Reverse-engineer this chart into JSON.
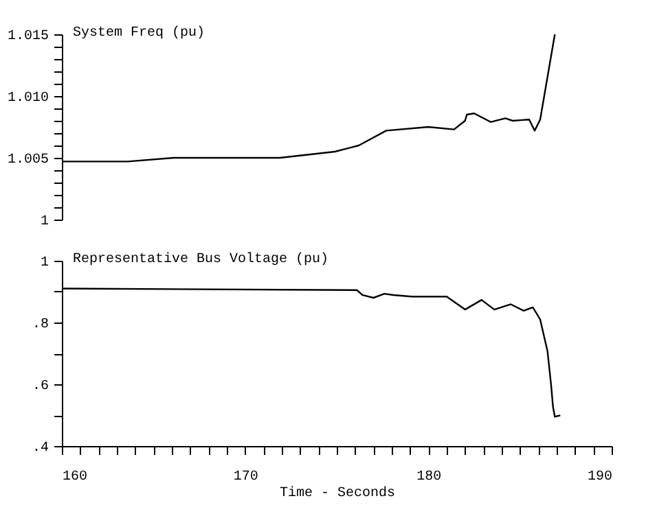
{
  "chart_data": [
    {
      "type": "line",
      "title": "System Freq (pu)",
      "tick_labels": "y",
      "grid": false,
      "xlim": [
        160,
        190
      ],
      "ylim": [
        1,
        1.015
      ],
      "yticks": [
        1,
        {
          "value": 1.001,
          "label": null
        },
        {
          "value": 1.002,
          "label": null
        },
        {
          "value": 1.003,
          "label": null
        },
        {
          "value": 1.004,
          "label": null
        },
        1.005,
        {
          "value": 1.006,
          "label": null
        },
        {
          "value": 1.007,
          "label": null
        },
        {
          "value": 1.008,
          "label": null
        },
        {
          "value": 1.009,
          "label": null
        },
        {
          "value": 1.01,
          "label": "1.010"
        },
        {
          "value": 1.011,
          "label": null
        },
        {
          "value": 1.012,
          "label": null
        },
        {
          "value": 1.013,
          "label": null
        },
        {
          "value": 1.014,
          "label": null
        },
        1.015
      ],
      "series": [
        {
          "color": "#000000",
          "x": [
            160,
            163.6,
            166.1,
            171.9,
            174.9,
            176.2,
            177.7,
            180.0,
            181.4,
            182.0,
            182.1,
            182.5,
            183.4,
            184.2,
            184.6,
            185.5,
            185.8,
            186.1,
            186.9
          ],
          "values": [
            1.0047,
            1.0047,
            1.005,
            1.005,
            1.0055,
            1.006,
            1.0072,
            1.0075,
            1.0073,
            1.008,
            1.0085,
            1.0086,
            1.0079,
            1.0082,
            1.008,
            1.0081,
            1.0072,
            1.0081,
            1.015
          ]
        }
      ]
    },
    {
      "type": "line",
      "title": "Representative Bus Voltage  (pu)",
      "xlabel": "Time - Seconds",
      "grid": false,
      "xlim": [
        160,
        190
      ],
      "ylim": [
        0.4,
        1
      ],
      "xticks": [
        160,
        {
          "value": 161,
          "label": null
        },
        {
          "value": 162,
          "label": null
        },
        {
          "value": 163,
          "label": null
        },
        {
          "value": 164,
          "label": null
        },
        {
          "value": 165,
          "label": null
        },
        {
          "value": 166,
          "label": null
        },
        {
          "value": 167,
          "label": null
        },
        {
          "value": 168,
          "label": null
        },
        {
          "value": 169,
          "label": null
        },
        170,
        {
          "value": 171,
          "label": null
        },
        {
          "value": 172,
          "label": null
        },
        {
          "value": 173,
          "label": null
        },
        {
          "value": 174,
          "label": null
        },
        {
          "value": 175,
          "label": null
        },
        {
          "value": 176,
          "label": null
        },
        {
          "value": 177,
          "label": null
        },
        {
          "value": 178,
          "label": null
        },
        {
          "value": 179,
          "label": null
        },
        180,
        {
          "value": 181,
          "label": null
        },
        {
          "value": 182,
          "label": null
        },
        {
          "value": 183,
          "label": null
        },
        {
          "value": 184,
          "label": null
        },
        {
          "value": 185,
          "label": null
        },
        {
          "value": 186,
          "label": null
        },
        {
          "value": 187,
          "label": null
        },
        {
          "value": 188,
          "label": null
        },
        {
          "value": 189,
          "label": null
        },
        190
      ],
      "yticks": [
        {
          "value": 0.4,
          "label": ".4"
        },
        {
          "value": 0.5,
          "label": null
        },
        {
          "value": 0.6,
          "label": ".6"
        },
        {
          "value": 0.7,
          "label": null
        },
        {
          "value": 0.8,
          "label": ".8"
        },
        {
          "value": 0.9,
          "label": null
        },
        1
      ],
      "series": [
        {
          "color": "#000000",
          "x": [
            160,
            176.1,
            176.4,
            177.0,
            177.6,
            178.1,
            179.1,
            181.0,
            182.0,
            182.9,
            183.6,
            184.5,
            185.2,
            185.7,
            186.1,
            186.5,
            186.7,
            186.8,
            186.9,
            187.2
          ],
          "values": [
            0.91,
            0.905,
            0.889,
            0.88,
            0.893,
            0.889,
            0.884,
            0.884,
            0.842,
            0.873,
            0.842,
            0.859,
            0.838,
            0.849,
            0.81,
            0.707,
            0.596,
            0.527,
            0.495,
            0.499
          ]
        }
      ]
    }
  ]
}
